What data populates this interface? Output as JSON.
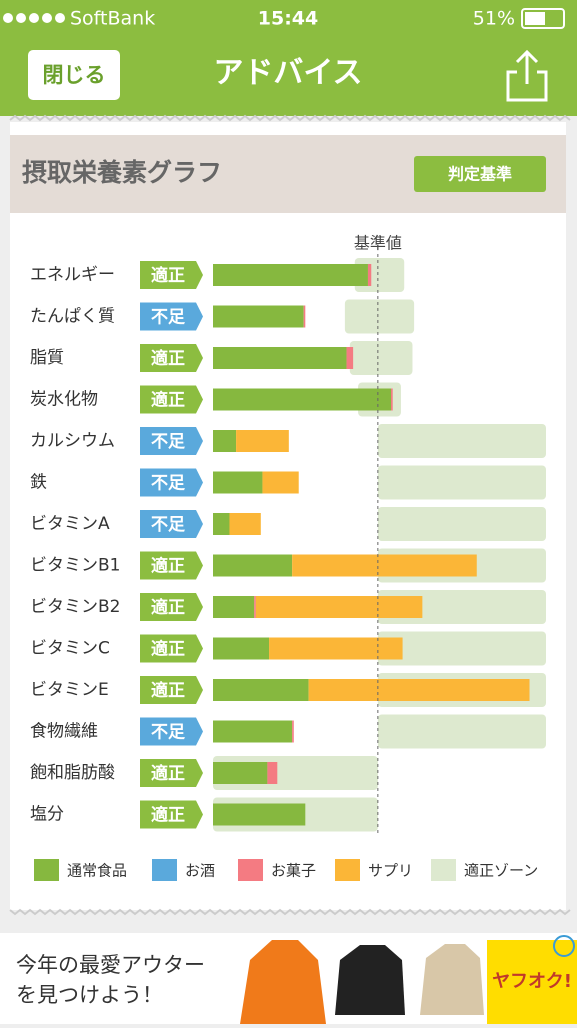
{
  "status_bar": {
    "carrier": "SoftBank",
    "time": "15:44",
    "battery": "51%"
  },
  "nav": {
    "close": "閉じる",
    "title": "アドバイス"
  },
  "section": {
    "title": "摂取栄養素グラフ",
    "criteria_button": "判定基準"
  },
  "chart_data": {
    "type": "bar",
    "orientation": "horizontal",
    "stacked": true,
    "categories": [
      "エネルギー",
      "たんぱく質",
      "脂質",
      "炭水化物",
      "カルシウム",
      "鉄",
      "ビタミンA",
      "ビタミンB1",
      "ビタミンB2",
      "ビタミンC",
      "ビタミンE",
      "食物繊維",
      "飽和脂肪酸",
      "塩分"
    ],
    "status": [
      "適正",
      "不足",
      "適正",
      "適正",
      "不足",
      "不足",
      "不足",
      "適正",
      "適正",
      "適正",
      "適正",
      "不足",
      "適正",
      "適正"
    ],
    "status_colors": [
      "#8cbd40",
      "#5aa9dc",
      "#8cbd40",
      "#8cbd40",
      "#5aa9dc",
      "#5aa9dc",
      "#5aa9dc",
      "#8cbd40",
      "#8cbd40",
      "#8cbd40",
      "#8cbd40",
      "#5aa9dc",
      "#8cbd40",
      "#8cbd40"
    ],
    "series": [
      {
        "name": "通常食品",
        "color": "#86b83f",
        "values": [
          94,
          55,
          81,
          108,
          14,
          30,
          10,
          48,
          25,
          34,
          58,
          48,
          33,
          56
        ]
      },
      {
        "name": "お酒",
        "color": "#5aa9dc",
        "values": [
          0,
          0,
          0,
          0,
          0,
          0,
          0,
          0,
          0,
          0,
          0,
          0,
          0,
          0
        ]
      },
      {
        "name": "お菓子",
        "color": "#f47b82",
        "values": [
          2,
          1,
          4,
          1,
          0,
          0,
          0,
          0,
          1,
          0,
          0,
          1,
          6,
          0
        ]
      },
      {
        "name": "サプリ",
        "color": "#fbb637",
        "values": [
          0,
          0,
          0,
          0,
          32,
          22,
          19,
          112,
          101,
          81,
          134,
          0,
          0,
          0
        ]
      }
    ],
    "zone": {
      "name": "適正ゾーン",
      "color": "#dde9cf",
      "low": [
        86,
        80,
        83,
        88,
        100,
        100,
        100,
        100,
        100,
        100,
        100,
        100,
        0,
        0
      ],
      "high": [
        116,
        122,
        121,
        114,
        202,
        202,
        202,
        202,
        202,
        202,
        202,
        202,
        100,
        100
      ]
    },
    "reference": {
      "label": "基準値",
      "value": 100
    },
    "xlim": [
      0,
      202
    ]
  },
  "ad": {
    "line1": "今年の最愛アウター",
    "line2": "を見つけよう！",
    "brand": "ヤフオク!"
  }
}
